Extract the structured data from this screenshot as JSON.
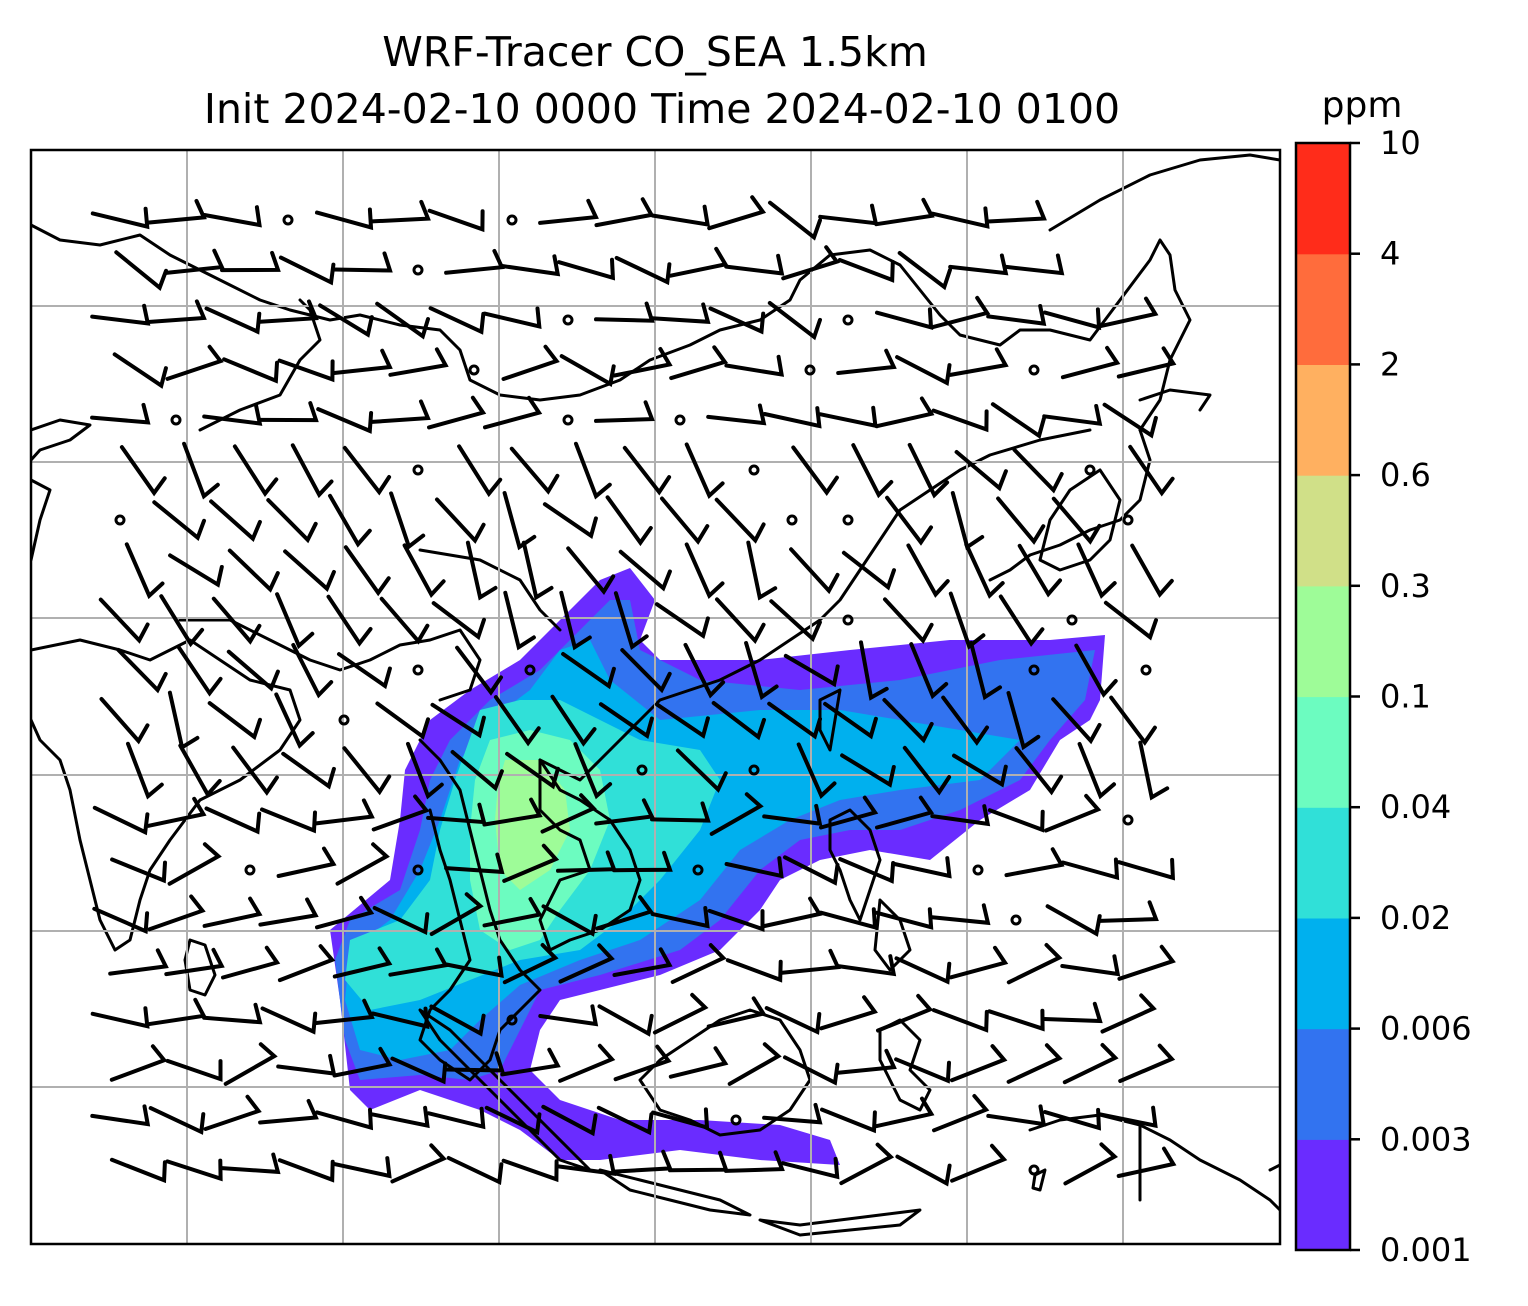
{
  "title": {
    "line1": "WRF-Tracer CO_SEA 1.5km",
    "line2": "Init 2024-02-10 0000 Time 2024-02-10 0100"
  },
  "colorbar": {
    "unit": "ppm",
    "ticks": [
      "0.001",
      "0.003",
      "0.006",
      "0.02",
      "0.04",
      "0.1",
      "0.3",
      "0.6",
      "2",
      "4",
      "10"
    ],
    "colors": [
      "#6a2cff",
      "#3273f0",
      "#00b0ee",
      "#30e0d8",
      "#6cfcc0",
      "#9efc98",
      "#d0e088",
      "#ffb060",
      "#ff6c3c",
      "#ff2c1a"
    ]
  },
  "map": {
    "grid": "on",
    "overlay": "wind barbs"
  }
}
